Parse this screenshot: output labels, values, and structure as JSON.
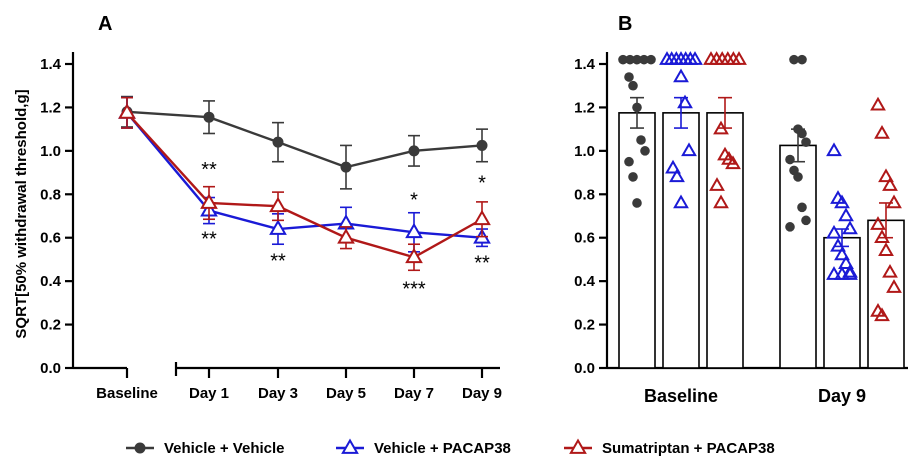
{
  "chart_data": [
    {
      "panel": "A",
      "type": "line",
      "ylabel": "SQRT[50% withdrawal threshold,g]",
      "ylim": [
        0,
        1.4
      ],
      "yticks": [
        "0.0",
        "0.2",
        "0.4",
        "0.6",
        "0.8",
        "1.0",
        "1.2",
        "1.4"
      ],
      "categories": [
        "Baseline",
        "Day 1",
        "Day 3",
        "Day 5",
        "Day 7",
        "Day 9"
      ],
      "axis_break": "between Baseline and Day 1",
      "series": [
        {
          "name": "Vehicle + Vehicle",
          "color": "#3a3a3a",
          "marker": "circle",
          "values": [
            1.18,
            1.155,
            1.04,
            0.925,
            1.0,
            1.025
          ],
          "error": [
            0.07,
            0.075,
            0.09,
            0.1,
            0.07,
            0.075
          ]
        },
        {
          "name": "Vehicle + PACAP38",
          "color": "#1a1ad6",
          "marker": "triangle",
          "values": [
            1.175,
            0.725,
            0.64,
            0.665,
            0.625,
            0.6
          ],
          "error": [
            0.07,
            0.06,
            0.07,
            0.075,
            0.09,
            0.04
          ]
        },
        {
          "name": "Sumatriptan + PACAP38",
          "color": "#b01818",
          "marker": "triangle",
          "values": [
            1.175,
            0.76,
            0.745,
            0.6,
            0.51,
            0.685
          ],
          "error": [
            0.07,
            0.075,
            0.065,
            0.05,
            0.06,
            0.08
          ]
        }
      ],
      "annotations": [
        {
          "category": "Day 1",
          "text": "**",
          "y": 0.92
        },
        {
          "category": "Day 1",
          "text": "**",
          "y": 0.6
        },
        {
          "category": "Day 3",
          "text": "**",
          "y": 0.5
        },
        {
          "category": "Day 7",
          "text": "*",
          "y": 0.78
        },
        {
          "category": "Day 7",
          "text": "***",
          "y": 0.37
        },
        {
          "category": "Day 9",
          "text": "*",
          "y": 0.86
        },
        {
          "category": "Day 9",
          "text": "**",
          "y": 0.49
        }
      ]
    },
    {
      "panel": "B",
      "type": "bar",
      "ylim": [
        0,
        1.4
      ],
      "yticks": [
        "0.0",
        "0.2",
        "0.4",
        "0.6",
        "0.8",
        "1.0",
        "1.2",
        "1.4"
      ],
      "groups": [
        "Baseline",
        "Day 9"
      ],
      "series": [
        {
          "name": "Vehicle + Vehicle",
          "color": "#3a3a3a",
          "marker": "circle",
          "means": [
            1.175,
            1.025
          ],
          "error": [
            0.07,
            0.075
          ],
          "points": [
            [
              1.42,
              1.42,
              1.42,
              1.42,
              1.42,
              1.34,
              1.3,
              1.2,
              1.05,
              1.0,
              0.95,
              0.88,
              0.76
            ],
            [
              1.42,
              1.42,
              1.1,
              1.08,
              1.04,
              0.96,
              0.91,
              0.88,
              0.74,
              0.68,
              0.65
            ]
          ]
        },
        {
          "name": "Vehicle + PACAP38",
          "color": "#1a1ad6",
          "marker": "triangle",
          "means": [
            1.175,
            0.6
          ],
          "error": [
            0.07,
            0.04
          ],
          "points": [
            [
              1.42,
              1.42,
              1.42,
              1.42,
              1.42,
              1.42,
              1.42,
              1.34,
              1.22,
              1.0,
              0.92,
              0.88,
              0.76
            ],
            [
              1.0,
              0.78,
              0.76,
              0.7,
              0.64,
              0.62,
              0.56,
              0.52,
              0.48,
              0.44,
              0.43,
              0.43,
              0.43
            ]
          ]
        },
        {
          "name": "Sumatriptan + PACAP38",
          "color": "#b01818",
          "marker": "triangle",
          "means": [
            1.175,
            0.68
          ],
          "error": [
            0.07,
            0.08
          ],
          "points": [
            [
              1.42,
              1.42,
              1.42,
              1.42,
              1.42,
              1.42,
              1.1,
              0.98,
              0.96,
              0.94,
              0.84,
              0.76
            ],
            [
              1.21,
              1.08,
              0.88,
              0.84,
              0.76,
              0.66,
              0.6,
              0.54,
              0.44,
              0.37,
              0.26,
              0.24
            ]
          ]
        }
      ]
    }
  ],
  "labels": {
    "panel_a": "A",
    "panel_b": "B",
    "ylabel": "SQRT[50% withdrawal threshold,g]"
  },
  "legend": [
    {
      "label": "Vehicle + Vehicle",
      "color": "#3a3a3a",
      "marker": "circle"
    },
    {
      "label": "Vehicle + PACAP38",
      "color": "#1a1ad6",
      "marker": "triangle"
    },
    {
      "label": "Sumatriptan + PACAP38",
      "color": "#b01818",
      "marker": "triangle"
    }
  ]
}
